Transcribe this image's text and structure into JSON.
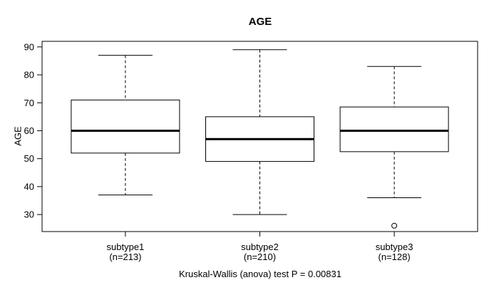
{
  "chart_data": {
    "type": "boxplot",
    "title": "AGE",
    "ylabel": "AGE",
    "xlabel": "",
    "annotation": "Kruskal-Wallis (anova) test P = 0.00831",
    "y_ticks": [
      30,
      40,
      50,
      60,
      70,
      80,
      90
    ],
    "ylim": [
      23.9,
      92.0
    ],
    "grid": false,
    "legend": "none",
    "groups": [
      {
        "label": "subtype1",
        "sublabel": "(n=213)",
        "n": 213,
        "whisker_low": 37,
        "q1": 52,
        "median": 60,
        "q3": 71,
        "whisker_high": 87,
        "outliers": []
      },
      {
        "label": "subtype2",
        "sublabel": "(n=210)",
        "n": 210,
        "whisker_low": 30,
        "q1": 49,
        "median": 57,
        "q3": 65,
        "whisker_high": 89,
        "outliers": []
      },
      {
        "label": "subtype3",
        "sublabel": "(n=128)",
        "n": 128,
        "whisker_low": 36,
        "q1": 52.5,
        "median": 60,
        "q3": 68.5,
        "whisker_high": 83,
        "outliers": [
          26
        ]
      }
    ],
    "colors": {
      "line": "#000000",
      "box_fill": "#ffffff",
      "background": "#ffffff"
    }
  }
}
